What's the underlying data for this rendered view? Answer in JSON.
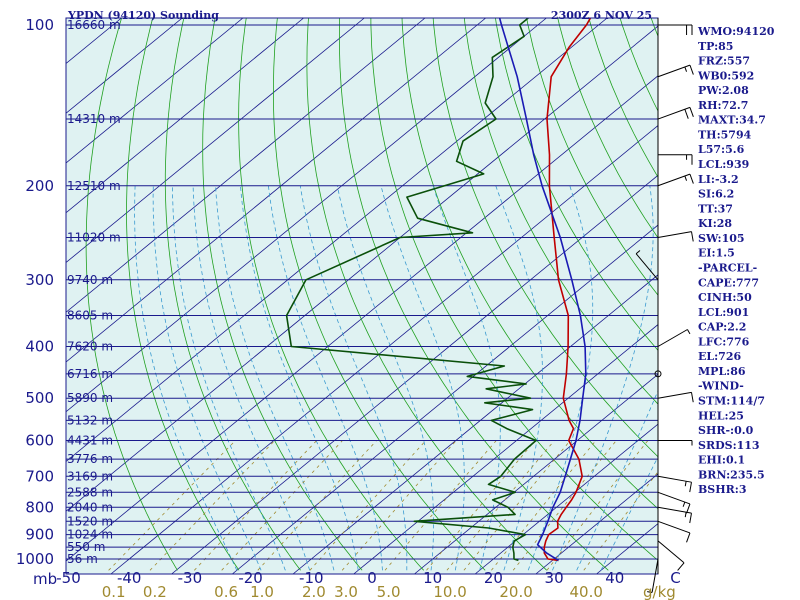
{
  "title_left": "YPDN (94120) Sounding",
  "title_right": "2300Z  6 NOV 25",
  "unit_left": "mb",
  "unit_right": "g/kg",
  "colors": {
    "isobar": "#1a1a8c",
    "isotherm": "#1a1a8c",
    "dry_adiabat": "#20a020",
    "moist_adiabat": "#3a9ad0",
    "mixing_ratio": "#a08a30",
    "temperature": "#c00000",
    "dewpoint": "#0a500a",
    "parcel": "#1a1ab4",
    "plot_bg": "#dff2f2"
  },
  "indices": [
    "WMO:94120",
    "TP:85",
    "FRZ:557",
    "WB0:592",
    "PW:2.08",
    "RH:72.7",
    "MAXT:34.7",
    "TH:5794",
    "L57:5.6",
    "LCL:939",
    "LI:-3.2",
    "SI:6.2",
    "TT:37",
    "KI:28",
    "SW:105",
    "EI:1.5",
    "-PARCEL-",
    "CAPE:777",
    "CINH:50",
    "LCL:901",
    "CAP:2.2",
    "LFC:776",
    "EL:726",
    "MPL:86",
    "-WIND-",
    "STM:114/7",
    "HEL:25",
    "SHR-:0.0",
    "SRDS:113",
    "EHI:0.1",
    "BRN:235.5",
    "BSHR:3"
  ],
  "chart_data": {
    "type": "line",
    "diagram": "skew-T log-P",
    "x_axis_label": "",
    "y_axis_label": "mb",
    "xlim": [
      -50,
      50
    ],
    "ylim": [
      1000,
      100
    ],
    "y_scale": "log",
    "temperature_ticks": [
      {
        "v": -50,
        "label": "-50"
      },
      {
        "v": -40,
        "label": "-40"
      },
      {
        "v": -30,
        "label": "-30"
      },
      {
        "v": -20,
        "label": "-20"
      },
      {
        "v": -10,
        "label": "-10"
      },
      {
        "v": 0,
        "label": "0"
      },
      {
        "v": 10,
        "label": "10"
      },
      {
        "v": 20,
        "label": "20"
      },
      {
        "v": 30,
        "label": "30"
      },
      {
        "v": 40,
        "label": "40"
      },
      {
        "v": 50,
        "label": "C"
      }
    ],
    "mixing_ratio_ticks": [
      {
        "w": 0.1,
        "label": "0.1"
      },
      {
        "w": 0.2,
        "label": "0.2"
      },
      {
        "w": 0.6,
        "label": "0.6"
      },
      {
        "w": 1.0,
        "label": "1.0"
      },
      {
        "w": 2.0,
        "label": "2.0"
      },
      {
        "w": 3.0,
        "label": "3.0"
      },
      {
        "w": 5.0,
        "label": "5.0"
      },
      {
        "w": 10.0,
        "label": "10.0"
      },
      {
        "w": 20.0,
        "label": "20.0"
      },
      {
        "w": 40.0,
        "label": "40.0"
      }
    ],
    "pressure_levels": [
      {
        "p": 100,
        "label": "100",
        "height": "16660 m"
      },
      {
        "p": 150,
        "label": "",
        "height": "14310 m"
      },
      {
        "p": 200,
        "label": "200",
        "height": "12510 m"
      },
      {
        "p": 250,
        "label": "",
        "height": "11020 m"
      },
      {
        "p": 300,
        "label": "300",
        "height": "9740 m"
      },
      {
        "p": 350,
        "label": "",
        "height": "8605 m"
      },
      {
        "p": 400,
        "label": "400",
        "height": "7620 m"
      },
      {
        "p": 450,
        "label": "",
        "height": "6716 m"
      },
      {
        "p": 500,
        "label": "500",
        "height": "5890 m"
      },
      {
        "p": 550,
        "label": "",
        "height": "5132 m"
      },
      {
        "p": 600,
        "label": "600",
        "height": "4431 m"
      },
      {
        "p": 650,
        "label": "",
        "height": "3776 m"
      },
      {
        "p": 700,
        "label": "700",
        "height": "3169 m"
      },
      {
        "p": 750,
        "label": "",
        "height": "2588 m"
      },
      {
        "p": 800,
        "label": "800",
        "height": "2040 m"
      },
      {
        "p": 850,
        "label": "",
        "height": "1520 m"
      },
      {
        "p": 900,
        "label": "900",
        "height": "1024 m"
      },
      {
        "p": 950,
        "label": "",
        "height": "550 m"
      },
      {
        "p": 1000,
        "label": "1000",
        "height": "56 m"
      }
    ],
    "series": [
      {
        "key": "temperature",
        "values": [
          {
            "p": 1006,
            "t": 31.0
          },
          {
            "p": 1000,
            "t": 29.0
          },
          {
            "p": 975,
            "t": 27.2
          },
          {
            "p": 950,
            "t": 26.0
          },
          {
            "p": 925,
            "t": 25.0
          },
          {
            "p": 900,
            "t": 24.2
          },
          {
            "p": 875,
            "t": 24.4
          },
          {
            "p": 850,
            "t": 23.0
          },
          {
            "p": 825,
            "t": 22.2
          },
          {
            "p": 800,
            "t": 21.6
          },
          {
            "p": 775,
            "t": 21.0
          },
          {
            "p": 750,
            "t": 20.2
          },
          {
            "p": 700,
            "t": 18.0
          },
          {
            "p": 650,
            "t": 14.0
          },
          {
            "p": 600,
            "t": 8.6
          },
          {
            "p": 570,
            "t": 7.0
          },
          {
            "p": 550,
            "t": 4.6
          },
          {
            "p": 500,
            "t": -0.8
          },
          {
            "p": 450,
            "t": -5.2
          },
          {
            "p": 400,
            "t": -10.4
          },
          {
            "p": 350,
            "t": -16.6
          },
          {
            "p": 300,
            "t": -25.4
          },
          {
            "p": 250,
            "t": -34.6
          },
          {
            "p": 200,
            "t": -45.8
          },
          {
            "p": 175,
            "t": -52.0
          },
          {
            "p": 150,
            "t": -59.6
          },
          {
            "p": 125,
            "t": -67.4
          },
          {
            "p": 110,
            "t": -70.4
          },
          {
            "p": 100,
            "t": -72.0
          },
          {
            "p": 90,
            "t": -74.6
          }
        ]
      },
      {
        "key": "dewpoint",
        "values": [
          {
            "p": 1006,
            "t": 24.4
          },
          {
            "p": 1000,
            "t": 23.4
          },
          {
            "p": 975,
            "t": 22.2
          },
          {
            "p": 950,
            "t": 20.8
          },
          {
            "p": 925,
            "t": 19.8
          },
          {
            "p": 900,
            "t": 20.4
          },
          {
            "p": 875,
            "t": 13.0
          },
          {
            "p": 850,
            "t": -0.6
          },
          {
            "p": 825,
            "t": 14.6
          },
          {
            "p": 800,
            "t": 12.0
          },
          {
            "p": 775,
            "t": 8.0
          },
          {
            "p": 750,
            "t": 10.2
          },
          {
            "p": 725,
            "t": 4.2
          },
          {
            "p": 700,
            "t": 4.6
          },
          {
            "p": 650,
            "t": 3.4
          },
          {
            "p": 600,
            "t": 3.2
          },
          {
            "p": 570,
            "t": -4.0
          },
          {
            "p": 550,
            "t": -8.2
          },
          {
            "p": 525,
            "t": -3.6
          },
          {
            "p": 510,
            "t": -12.8
          },
          {
            "p": 500,
            "t": -6.2
          },
          {
            "p": 480,
            "t": -15.4
          },
          {
            "p": 470,
            "t": -9.8
          },
          {
            "p": 455,
            "t": -21.0
          },
          {
            "p": 435,
            "t": -17.0
          },
          {
            "p": 400,
            "t": -56.0
          },
          {
            "p": 350,
            "t": -63.0
          },
          {
            "p": 300,
            "t": -67.0
          },
          {
            "p": 250,
            "t": -60.0
          },
          {
            "p": 245,
            "t": -49.0
          },
          {
            "p": 230,
            "t": -61.0
          },
          {
            "p": 210,
            "t": -67.0
          },
          {
            "p": 190,
            "t": -59.0
          },
          {
            "p": 180,
            "t": -66.0
          },
          {
            "p": 165,
            "t": -69.0
          },
          {
            "p": 150,
            "t": -68.0
          },
          {
            "p": 140,
            "t": -73.0
          },
          {
            "p": 125,
            "t": -77.0
          },
          {
            "p": 115,
            "t": -81.0
          },
          {
            "p": 105,
            "t": -80.0
          },
          {
            "p": 100,
            "t": -83.0
          },
          {
            "p": 90,
            "t": -83.0
          }
        ]
      },
      {
        "key": "parcel",
        "values": [
          {
            "p": 1006,
            "t": 31.0
          },
          {
            "p": 975,
            "t": 27.6
          },
          {
            "p": 940,
            "t": 24.4
          },
          {
            "p": 900,
            "t": 23.2
          },
          {
            "p": 850,
            "t": 21.4
          },
          {
            "p": 800,
            "t": 19.4
          },
          {
            "p": 750,
            "t": 17.6
          },
          {
            "p": 700,
            "t": 15.2
          },
          {
            "p": 650,
            "t": 12.6
          },
          {
            "p": 600,
            "t": 9.8
          },
          {
            "p": 550,
            "t": 6.4
          },
          {
            "p": 500,
            "t": 2.4
          },
          {
            "p": 450,
            "t": -2.0
          },
          {
            "p": 400,
            "t": -7.6
          },
          {
            "p": 350,
            "t": -14.6
          },
          {
            "p": 300,
            "t": -23.2
          },
          {
            "p": 250,
            "t": -33.6
          },
          {
            "p": 200,
            "t": -47.0
          },
          {
            "p": 175,
            "t": -54.6
          },
          {
            "p": 150,
            "t": -63.0
          },
          {
            "p": 125,
            "t": -73.0
          },
          {
            "p": 100,
            "t": -86.0
          },
          {
            "p": 90,
            "t": -92.0
          }
        ]
      }
    ],
    "winds": [
      {
        "p": 1000,
        "dir": 190,
        "spd": 5
      },
      {
        "p": 925,
        "dir": 130,
        "spd": 10
      },
      {
        "p": 850,
        "dir": 110,
        "spd": 10
      },
      {
        "p": 800,
        "dir": 100,
        "spd": 15
      },
      {
        "p": 750,
        "dir": 110,
        "spd": 15
      },
      {
        "p": 700,
        "dir": 100,
        "spd": 15
      },
      {
        "p": 600,
        "dir": 90,
        "spd": 5
      },
      {
        "p": 500,
        "dir": 80,
        "spd": 10
      },
      {
        "p": 450,
        "dir": 0,
        "spd": 0
      },
      {
        "p": 400,
        "dir": 60,
        "spd": 5
      },
      {
        "p": 300,
        "dir": 320,
        "spd": 5
      },
      {
        "p": 250,
        "dir": 80,
        "spd": 10
      },
      {
        "p": 200,
        "dir": 70,
        "spd": 15
      },
      {
        "p": 175,
        "dir": 90,
        "spd": 15
      },
      {
        "p": 150,
        "dir": 70,
        "spd": 20
      },
      {
        "p": 125,
        "dir": 70,
        "spd": 15
      },
      {
        "p": 100,
        "dir": 90,
        "spd": 20
      }
    ]
  }
}
